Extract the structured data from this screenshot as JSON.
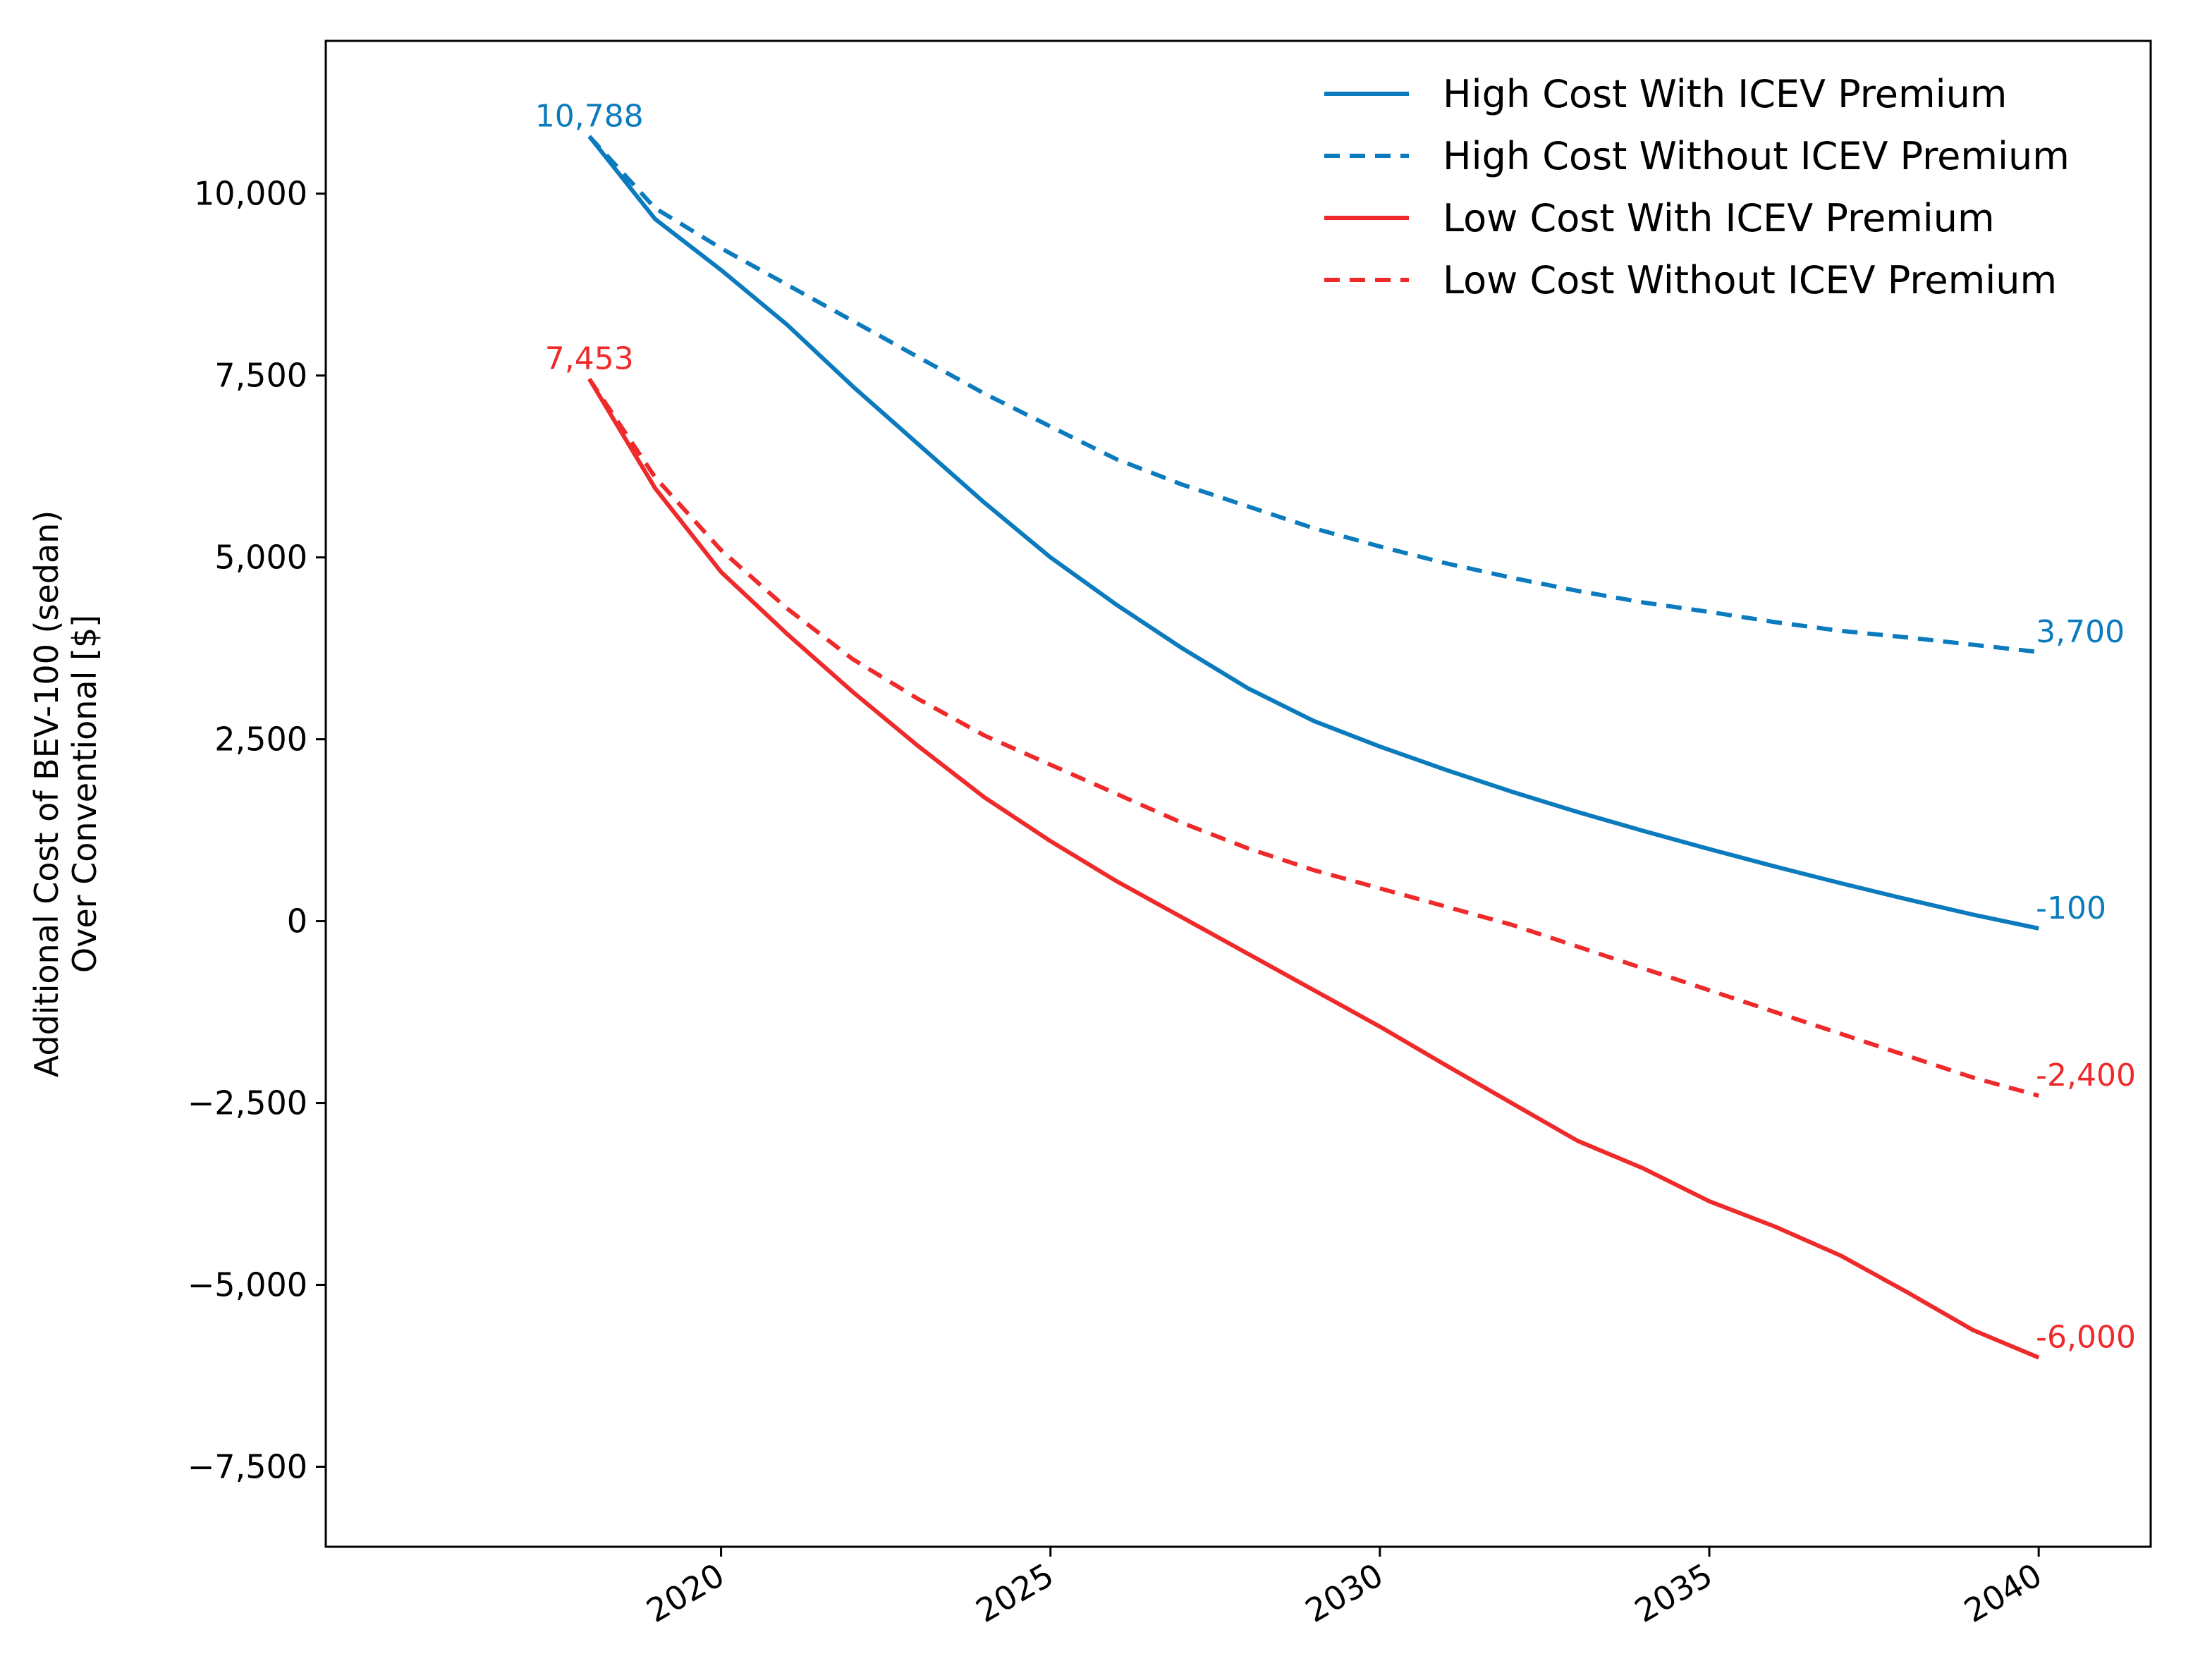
{
  "chart_data": {
    "type": "line",
    "title": "",
    "xlabel": "",
    "ylabel_lines": [
      "Additional Cost of BEV-100 (sedan)",
      "Over Conventional [$]"
    ],
    "xlim": [
      2014,
      2041.7
    ],
    "ylim": [
      -8600,
      12100
    ],
    "xticks": [
      2020,
      2025,
      2030,
      2035,
      2040
    ],
    "xtick_labels": [
      "2020",
      "2025",
      "2030",
      "2035",
      "2040"
    ],
    "yticks": [
      10000,
      7500,
      5000,
      2500,
      0,
      -2500,
      -5000,
      -7500
    ],
    "ytick_labels": [
      "10,000",
      "7,500",
      "5,000",
      "2,500",
      "0",
      "−2,500",
      "−5,000",
      "−7,500"
    ],
    "grid": false,
    "legend_position": "top-right",
    "x": [
      2018,
      2019,
      2020,
      2021,
      2022,
      2023,
      2024,
      2025,
      2026,
      2027,
      2028,
      2029,
      2030,
      2031,
      2032,
      2033,
      2034,
      2035,
      2036,
      2037,
      2038,
      2039,
      2040
    ],
    "series": [
      {
        "name": "High Cost With ICEV Premium",
        "color": "#0b7bbd",
        "dash": "solid",
        "values": [
          10788,
          9650,
          8950,
          8200,
          7350,
          6550,
          5750,
          5000,
          4350,
          3750,
          3200,
          2750,
          2400,
          2080,
          1780,
          1500,
          1240,
          990,
          750,
          520,
          300,
          90,
          -100
        ]
      },
      {
        "name": "High Cost Without ICEV Premium",
        "color": "#0b7bbd",
        "dash": "dashed",
        "values": [
          10788,
          9800,
          9250,
          8750,
          8250,
          7750,
          7250,
          6800,
          6350,
          6000,
          5700,
          5400,
          5150,
          4920,
          4720,
          4540,
          4380,
          4250,
          4110,
          3990,
          3900,
          3800,
          3700
        ]
      },
      {
        "name": "Low Cost With ICEV Premium",
        "color": "#ee2a2b",
        "dash": "solid",
        "values": [
          7453,
          5950,
          4800,
          3950,
          3150,
          2400,
          1700,
          1100,
          550,
          50,
          -450,
          -950,
          -1450,
          -1980,
          -2500,
          -3020,
          -3400,
          -3850,
          -4200,
          -4600,
          -5100,
          -5620,
          -6000
        ]
      },
      {
        "name": "Low Cost Without ICEV Premium",
        "color": "#ee2a2b",
        "dash": "dashed",
        "values": [
          7453,
          6100,
          5100,
          4300,
          3600,
          3050,
          2550,
          2150,
          1750,
          1350,
          1000,
          700,
          450,
          200,
          -50,
          -350,
          -650,
          -950,
          -1250,
          -1550,
          -1850,
          -2150,
          -2400
        ]
      }
    ],
    "annotations": [
      {
        "text": "10,788",
        "x": 2018,
        "y": 10788,
        "color": "#0b7bbd",
        "anchor": "middle",
        "place": "above"
      },
      {
        "text": "7,453",
        "x": 2018,
        "y": 7453,
        "color": "#ee2a2b",
        "anchor": "middle",
        "place": "above"
      },
      {
        "text": "3,700",
        "x": 2040,
        "y": 3700,
        "color": "#0b7bbd",
        "anchor": "start",
        "place": "above"
      },
      {
        "text": "-100",
        "x": 2040,
        "y": -100,
        "color": "#0b7bbd",
        "anchor": "start",
        "place": "above"
      },
      {
        "text": "-2,400",
        "x": 2040,
        "y": -2400,
        "color": "#ee2a2b",
        "anchor": "start",
        "place": "above"
      },
      {
        "text": "-6,000",
        "x": 2040,
        "y": -6000,
        "color": "#ee2a2b",
        "anchor": "start",
        "place": "above"
      }
    ]
  }
}
